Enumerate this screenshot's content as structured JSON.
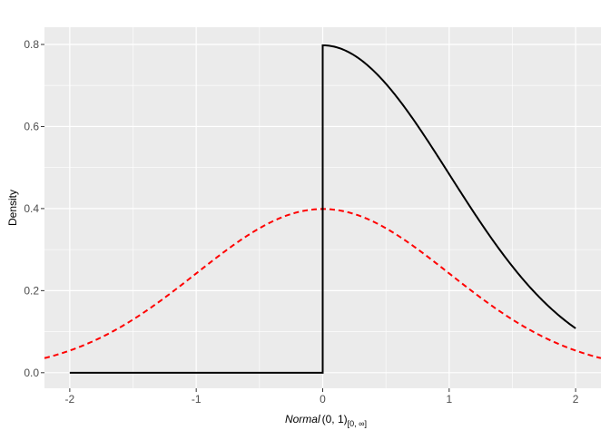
{
  "chart_data": {
    "type": "line",
    "title": "",
    "xlabel": {
      "main": "Normal",
      "args": "(0, 1)",
      "subscript": "[0, ∞]"
    },
    "ylabel": "Density",
    "xlim": [
      -2.2,
      2.2
    ],
    "ylim": [
      -0.038,
      0.842
    ],
    "x_ticks": [
      -2,
      -1,
      0,
      1,
      2
    ],
    "x_tick_labels": [
      "-2",
      "-1",
      "0",
      "1",
      "2"
    ],
    "y_ticks": [
      0.0,
      0.2,
      0.4,
      0.6,
      0.8
    ],
    "y_tick_labels": [
      "0.0",
      "0.2",
      "0.4",
      "0.6",
      "0.8"
    ],
    "grid": true,
    "panel_background": "#EBEBEB",
    "series": [
      {
        "description_style": "solid",
        "color": "#000000",
        "function": "truncated normal density 2*phi(x) for x>=0, 0 for x<0",
        "x_range": [
          -2,
          2
        ],
        "x": [
          -2,
          -1,
          0,
          0,
          0.5,
          1,
          1.5,
          2
        ],
        "y": [
          0,
          0,
          0,
          0.798,
          0.704,
          0.484,
          0.259,
          0.108
        ]
      },
      {
        "description_style": "dashed",
        "color": "#FF0000",
        "function": "normal density phi(x)",
        "x_range": [
          -2.2,
          2.2
        ],
        "x": [
          -2.2,
          -2,
          -1.5,
          -1,
          -0.5,
          0,
          0.5,
          1,
          1.5,
          2,
          2.2
        ],
        "y": [
          0.035,
          0.054,
          0.13,
          0.242,
          0.352,
          0.399,
          0.352,
          0.242,
          0.13,
          0.054,
          0.035
        ]
      }
    ]
  }
}
